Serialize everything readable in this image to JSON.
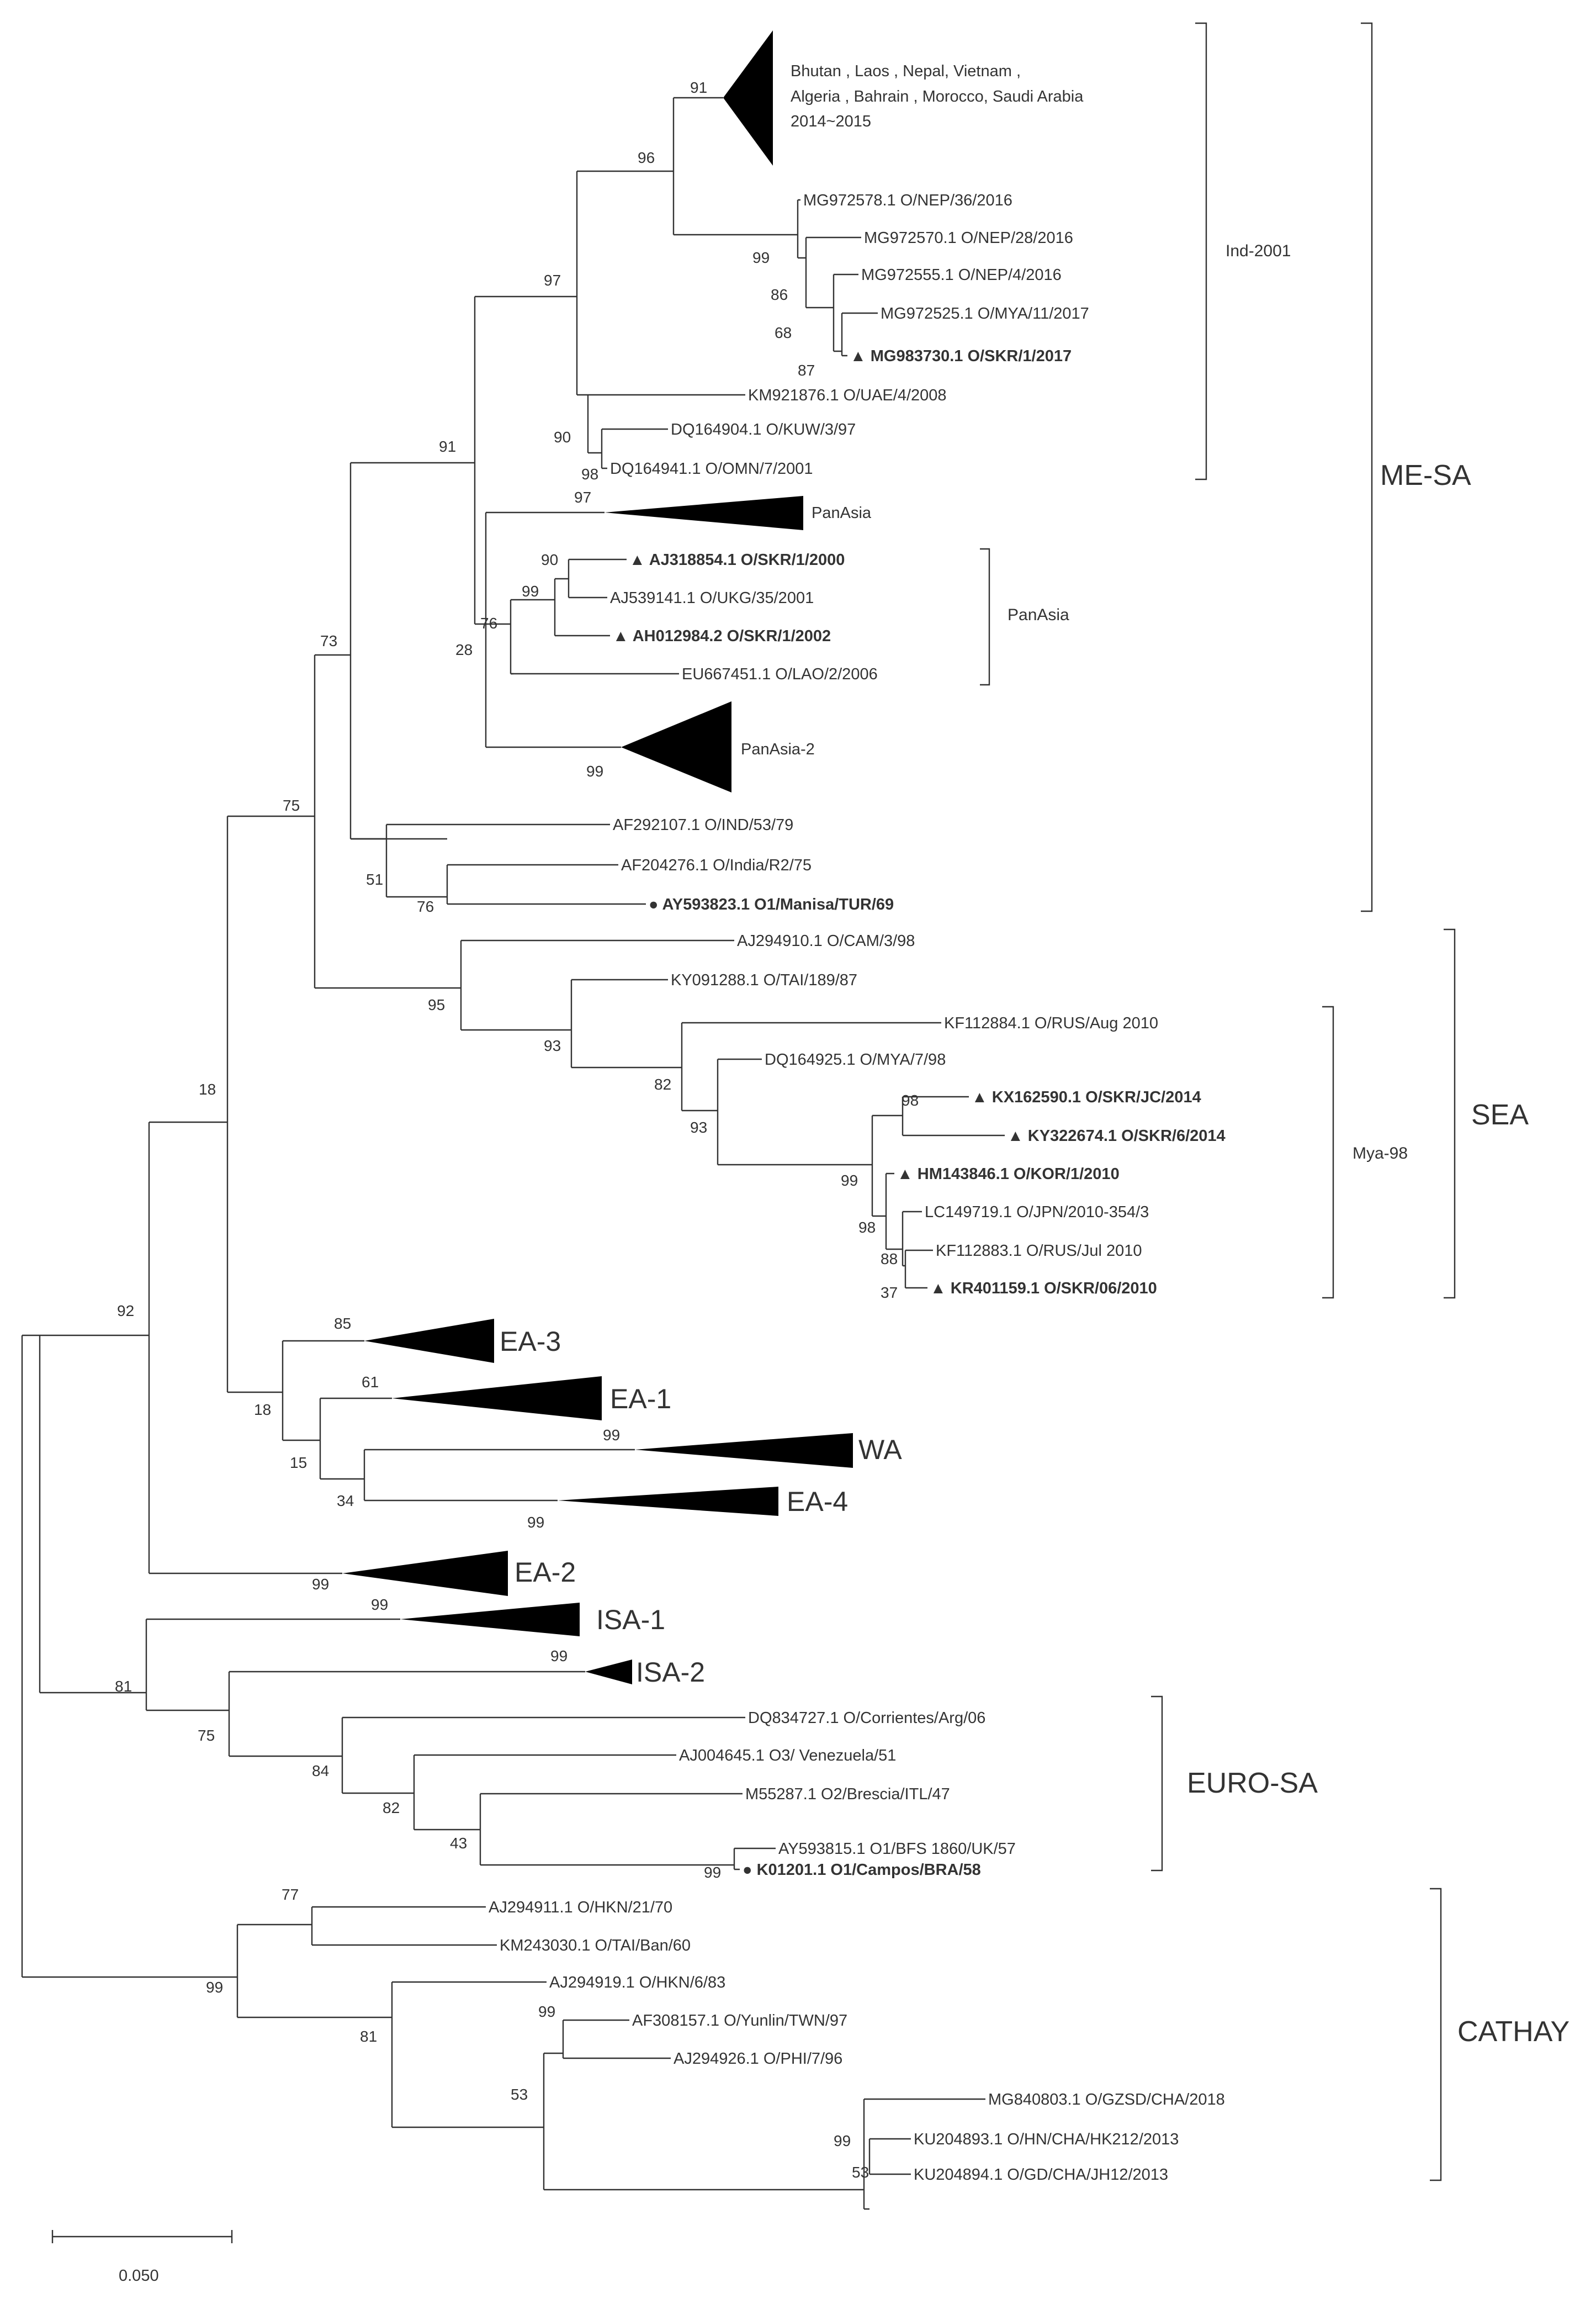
{
  "scale_bar": {
    "label": "0.050"
  },
  "groups": {
    "me_sa": "ME-SA",
    "sea": "SEA",
    "euro_sa": "EURO-SA",
    "cathay": "CATHAY",
    "ind2001": "Ind-2001",
    "panasia_bracket": "PanAsia",
    "mya98": "Mya-98"
  },
  "collapsed": {
    "ind_triangle_lines": [
      "Bhutan , Laos , Nepal, Vietnam ,",
      "Algeria , Bahrain , Morocco, Saudi Arabia",
      "2014~2015"
    ],
    "panasia": "PanAsia",
    "panasia2": "PanAsia-2",
    "ea3": "EA-3",
    "ea1": "EA-1",
    "wa": "WA",
    "ea4": "EA-4",
    "ea2": "EA-2",
    "isa1": "ISA-1",
    "isa2": "ISA-2"
  },
  "leaves": {
    "mg972578": "MG972578.1 O/NEP/36/2016",
    "mg972570": "MG972570.1  O/NEP/28/2016",
    "mg972555": "MG972555.1   O/NEP/4/2016",
    "mg972525": "MG972525.1 O/MYA/11/2017",
    "mg983730": "MG983730.1 O/SKR/1/2017",
    "km921876": "KM921876.1  O/UAE/4/2008",
    "dq164904": "DQ164904.1 O/KUW/3/97",
    "dq164941": "DQ164941.1 O/OMN/7/2001",
    "aj318854": "AJ318854.1 O/SKR/1/2000",
    "aj539141": "AJ539141.1 O/UKG/35/2001",
    "ah012984": "AH012984.2 O/SKR/1/2002",
    "eu667451": "EU667451.1 O/LAO/2/2006",
    "af292107": "AF292107.1 O/IND/53/79",
    "af204276": "AF204276.1 O/India/R2/75",
    "ay593823": "AY593823.1 O1/Manisa/TUR/69",
    "aj294910": "AJ294910.1 O/CAM/3/98",
    "ky091288": "KY091288.1 O/TAI/189/87",
    "kf112884": "KF112884.1  O/RUS/Aug 2010",
    "dq164925": "DQ164925.1 O/MYA/7/98",
    "kx162590": "KX162590.1  O/SKR/JC/2014",
    "ky322674": "KY322674.1 O/SKR/6/2014",
    "hm143846": "HM143846.1 O/KOR/1/2010",
    "lc149719": "LC149719.1 O/JPN/2010-354/3",
    "kf112883": "KF112883.1 O/RUS/Jul 2010",
    "kr401159": "KR401159.1 O/SKR/06/2010",
    "dq834727": "DQ834727.1  O/Corrientes/Arg/06",
    "aj004645": "AJ004645.1 O3/ Venezuela/51",
    "m55287": "M55287.1 O2/Brescia/ITL/47",
    "ay593815": "AY593815.1 O1/BFS 1860/UK/57",
    "k01201": "K01201.1 O1/Campos/BRA/58",
    "aj294911": "AJ294911.1 O/HKN/21/70",
    "km243030": "KM243030.1 O/TAI/Ban/60",
    "aj294919": "AJ294919.1 O/HKN/6/83",
    "af308157": "AF308157.1 O/Yunlin/TWN/97",
    "aj294926": "AJ294926.1 O/PHI/7/96",
    "mg840803": "MG840803.1 O/GZSD/CHA/2018",
    "ku204893": "KU204893.1 O/HN/CHA/HK212/2013",
    "ku204894": "KU204894.1 O/GD/CHA/JH12/2013"
  },
  "markers": {
    "korean": "▲",
    "reference": "●"
  },
  "bootstrap": {
    "b91a": "91",
    "b96": "96",
    "b97a": "97",
    "b99a": "99",
    "b86": "86",
    "b68": "68",
    "b87": "87",
    "b90a": "90",
    "b98a": "98",
    "b91b": "91",
    "b97b": "97",
    "b90b": "90",
    "b99b": "99",
    "b76a": "76",
    "b28": "28",
    "b99c": "99",
    "b73": "73",
    "b75a": "75",
    "b51": "51",
    "b76b": "76",
    "b95": "95",
    "b93a": "93",
    "b82a": "82",
    "b93b": "93",
    "b98b": "98",
    "b99d": "99",
    "b98c": "98",
    "b88": "88",
    "b37": "37",
    "b18a": "18",
    "b92": "92",
    "b85": "85",
    "b61": "61",
    "b18b": "18",
    "b15": "15",
    "b99e": "99",
    "b34": "34",
    "b99f": "99",
    "b99g": "99",
    "b99h": "99",
    "b99i": "99",
    "b81a": "81",
    "b75b": "75",
    "b84": "84",
    "b82b": "82",
    "b43": "43",
    "b99j": "99",
    "b77": "77",
    "b99k": "99",
    "b99l": "99",
    "b81b": "81",
    "b53a": "53",
    "b99m": "99",
    "b53b": "53"
  }
}
